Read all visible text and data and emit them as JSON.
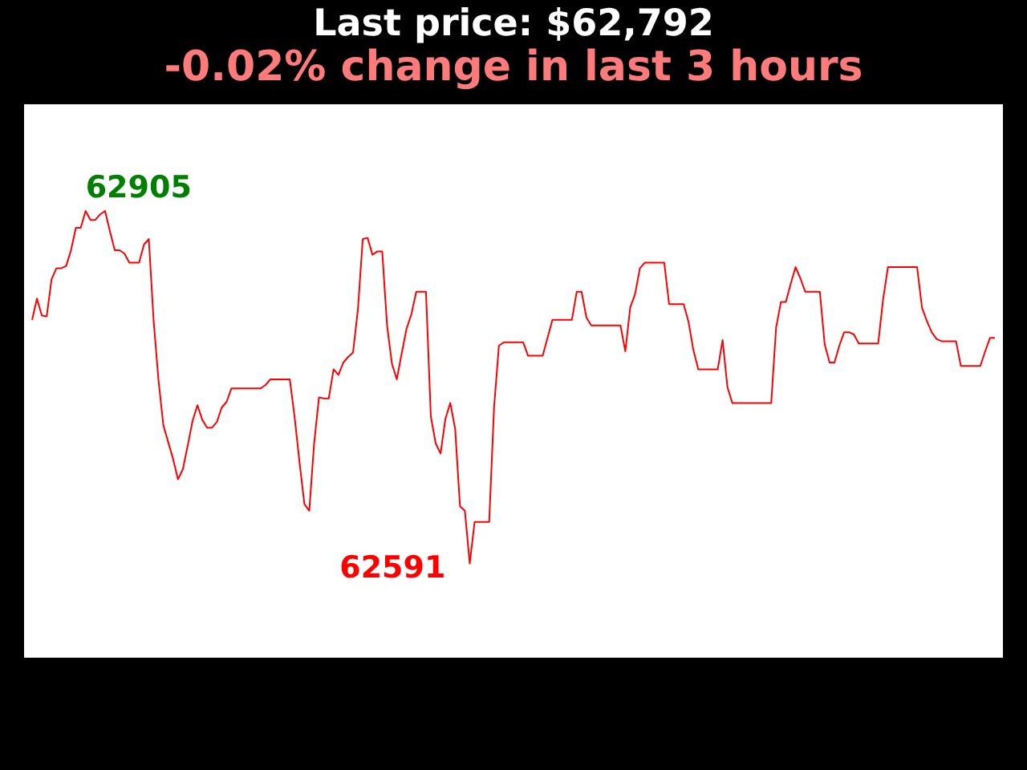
{
  "chart_data": {
    "type": "line",
    "title": "Last price: $62,792",
    "subtitle": "-0.02% change in last 3 hours",
    "marker": "none",
    "legend": false,
    "categories": [
      null,
      null,
      null,
      null,
      null,
      null,
      null,
      null,
      null,
      null,
      null,
      null,
      null,
      null,
      null,
      null,
      null,
      null,
      null,
      null,
      null,
      null,
      null,
      null,
      null,
      null,
      null,
      null,
      null,
      null,
      null,
      null,
      null,
      null,
      null,
      null,
      null,
      null,
      null,
      null,
      null,
      null,
      null,
      null,
      null,
      null,
      null,
      null,
      null,
      null,
      null,
      null,
      null,
      null,
      null,
      null,
      null,
      null,
      null,
      null,
      null,
      null,
      null,
      null,
      null,
      null,
      null,
      null,
      null,
      null,
      null,
      null,
      null,
      null,
      null,
      null,
      null,
      null,
      null,
      null,
      null,
      null,
      null,
      null,
      null,
      null,
      null,
      null,
      null,
      null,
      null,
      null,
      null,
      null,
      null,
      null,
      null,
      null,
      null,
      null,
      null,
      null,
      null,
      null,
      null,
      null,
      null,
      null,
      null,
      null,
      null,
      null,
      null,
      null,
      null,
      null,
      null,
      null,
      null,
      null,
      null,
      null,
      null,
      null,
      null,
      null,
      null,
      null,
      null,
      null,
      null,
      null,
      null,
      null,
      null,
      null,
      null,
      null,
      null,
      null,
      null,
      null,
      null,
      null,
      null,
      null,
      null,
      null,
      null,
      null,
      null,
      null,
      null,
      null,
      null,
      null,
      null,
      null,
      null,
      null,
      null,
      null,
      null,
      null,
      null,
      null,
      null,
      null,
      null,
      null,
      null,
      null,
      null,
      null,
      null,
      null,
      null,
      null,
      null,
      null,
      null,
      null,
      null,
      null,
      null,
      null,
      null,
      null,
      null,
      null,
      null,
      null,
      null,
      null,
      null,
      null,
      null,
      null,
      null
    ],
    "series": [
      {
        "color": "#ff0000",
        "values": [
          62808,
          62827,
          62812,
          62811,
          62844,
          62854,
          62854,
          62856,
          62870,
          62890,
          62890,
          62905,
          62897,
          62897,
          62902,
          62905,
          62887,
          62870,
          62870,
          62867,
          62859,
          62859,
          62859,
          62875,
          62880,
          62807,
          62754,
          62714,
          62699,
          62684,
          62666,
          62675,
          62696,
          62718,
          62732,
          62719,
          62712,
          62712,
          62717,
          62730,
          62735,
          62747,
          62747,
          62747,
          62747,
          62747,
          62747,
          62747,
          62750,
          62755,
          62755,
          62755,
          62755,
          62755,
          62721,
          62681,
          62644,
          62638,
          62698,
          62739,
          62738,
          62738,
          62764,
          62759,
          62770,
          62775,
          62779,
          62817,
          62880,
          62881,
          62866,
          62869,
          62869,
          62803,
          62769,
          62755,
          62778,
          62800,
          62813,
          62833,
          62833,
          62833,
          62722,
          62698,
          62689,
          62720,
          62734,
          62711,
          62642,
          62638,
          62591,
          62628,
          62628,
          62628,
          62628,
          62730,
          62785,
          62788,
          62788,
          62788,
          62788,
          62788,
          62776,
          62776,
          62776,
          62776,
          62792,
          62808,
          62808,
          62808,
          62808,
          62808,
          62833,
          62833,
          62810,
          62803,
          62803,
          62803,
          62803,
          62803,
          62803,
          62803,
          62780,
          62819,
          62831,
          62854,
          62859,
          62859,
          62859,
          62859,
          62859,
          62822,
          62822,
          62822,
          62822,
          62806,
          62781,
          62764,
          62764,
          62764,
          62764,
          62764,
          62790,
          62748,
          62734,
          62734,
          62734,
          62734,
          62734,
          62734,
          62734,
          62734,
          62734,
          62801,
          62824,
          62824,
          62840,
          62855,
          62845,
          62833,
          62833,
          62833,
          62833,
          62786,
          62770,
          62770,
          62785,
          62797,
          62797,
          62795,
          62787,
          62787,
          62787,
          62787,
          62787,
          62826,
          62855,
          62855,
          62855,
          62855,
          62855,
          62855,
          62855,
          62819,
          62807,
          62797,
          62791,
          62789,
          62789,
          62789,
          62789,
          62767,
          62767,
          62767,
          62767,
          62767,
          62780,
          62792,
          62792
        ],
        "value_labels": [
          null,
          null,
          null,
          null,
          null,
          null,
          null,
          null,
          null,
          null,
          null,
          "62905",
          null,
          null,
          null,
          null,
          null,
          null,
          null,
          null,
          null,
          null,
          null,
          null,
          null,
          null,
          null,
          null,
          null,
          null,
          null,
          null,
          null,
          null,
          null,
          null,
          null,
          null,
          null,
          null,
          null,
          null,
          null,
          null,
          null,
          null,
          null,
          null,
          null,
          null,
          null,
          null,
          null,
          null,
          null,
          null,
          null,
          null,
          null,
          null,
          null,
          null,
          null,
          null,
          null,
          null,
          null,
          null,
          null,
          null,
          null,
          null,
          null,
          null,
          null,
          null,
          null,
          null,
          null,
          null,
          null,
          null,
          null,
          null,
          null,
          null,
          null,
          null,
          null,
          null,
          "62591",
          null,
          null,
          null,
          null,
          null,
          null,
          null,
          null,
          null,
          null,
          null,
          null,
          null,
          null,
          null,
          null,
          null,
          null,
          null,
          null,
          null,
          null,
          null,
          null,
          null,
          null,
          null,
          null,
          null,
          null,
          null,
          null,
          null,
          null,
          null,
          null,
          null,
          null,
          null,
          null,
          null,
          null,
          null,
          null,
          null,
          null,
          null,
          null,
          null,
          null,
          null,
          null,
          null,
          null,
          null,
          null,
          null,
          null,
          null,
          null,
          null,
          null,
          null,
          null,
          null,
          null,
          null,
          null,
          null,
          null,
          null,
          null,
          null,
          null,
          null,
          null,
          null,
          null,
          null,
          null,
          null,
          null,
          null,
          null,
          null,
          null,
          null,
          null,
          null,
          null,
          null,
          null,
          null,
          null,
          null,
          null,
          null,
          null,
          null,
          null,
          null,
          null,
          null,
          null,
          null,
          null,
          null,
          null
        ]
      }
    ]
  }
}
